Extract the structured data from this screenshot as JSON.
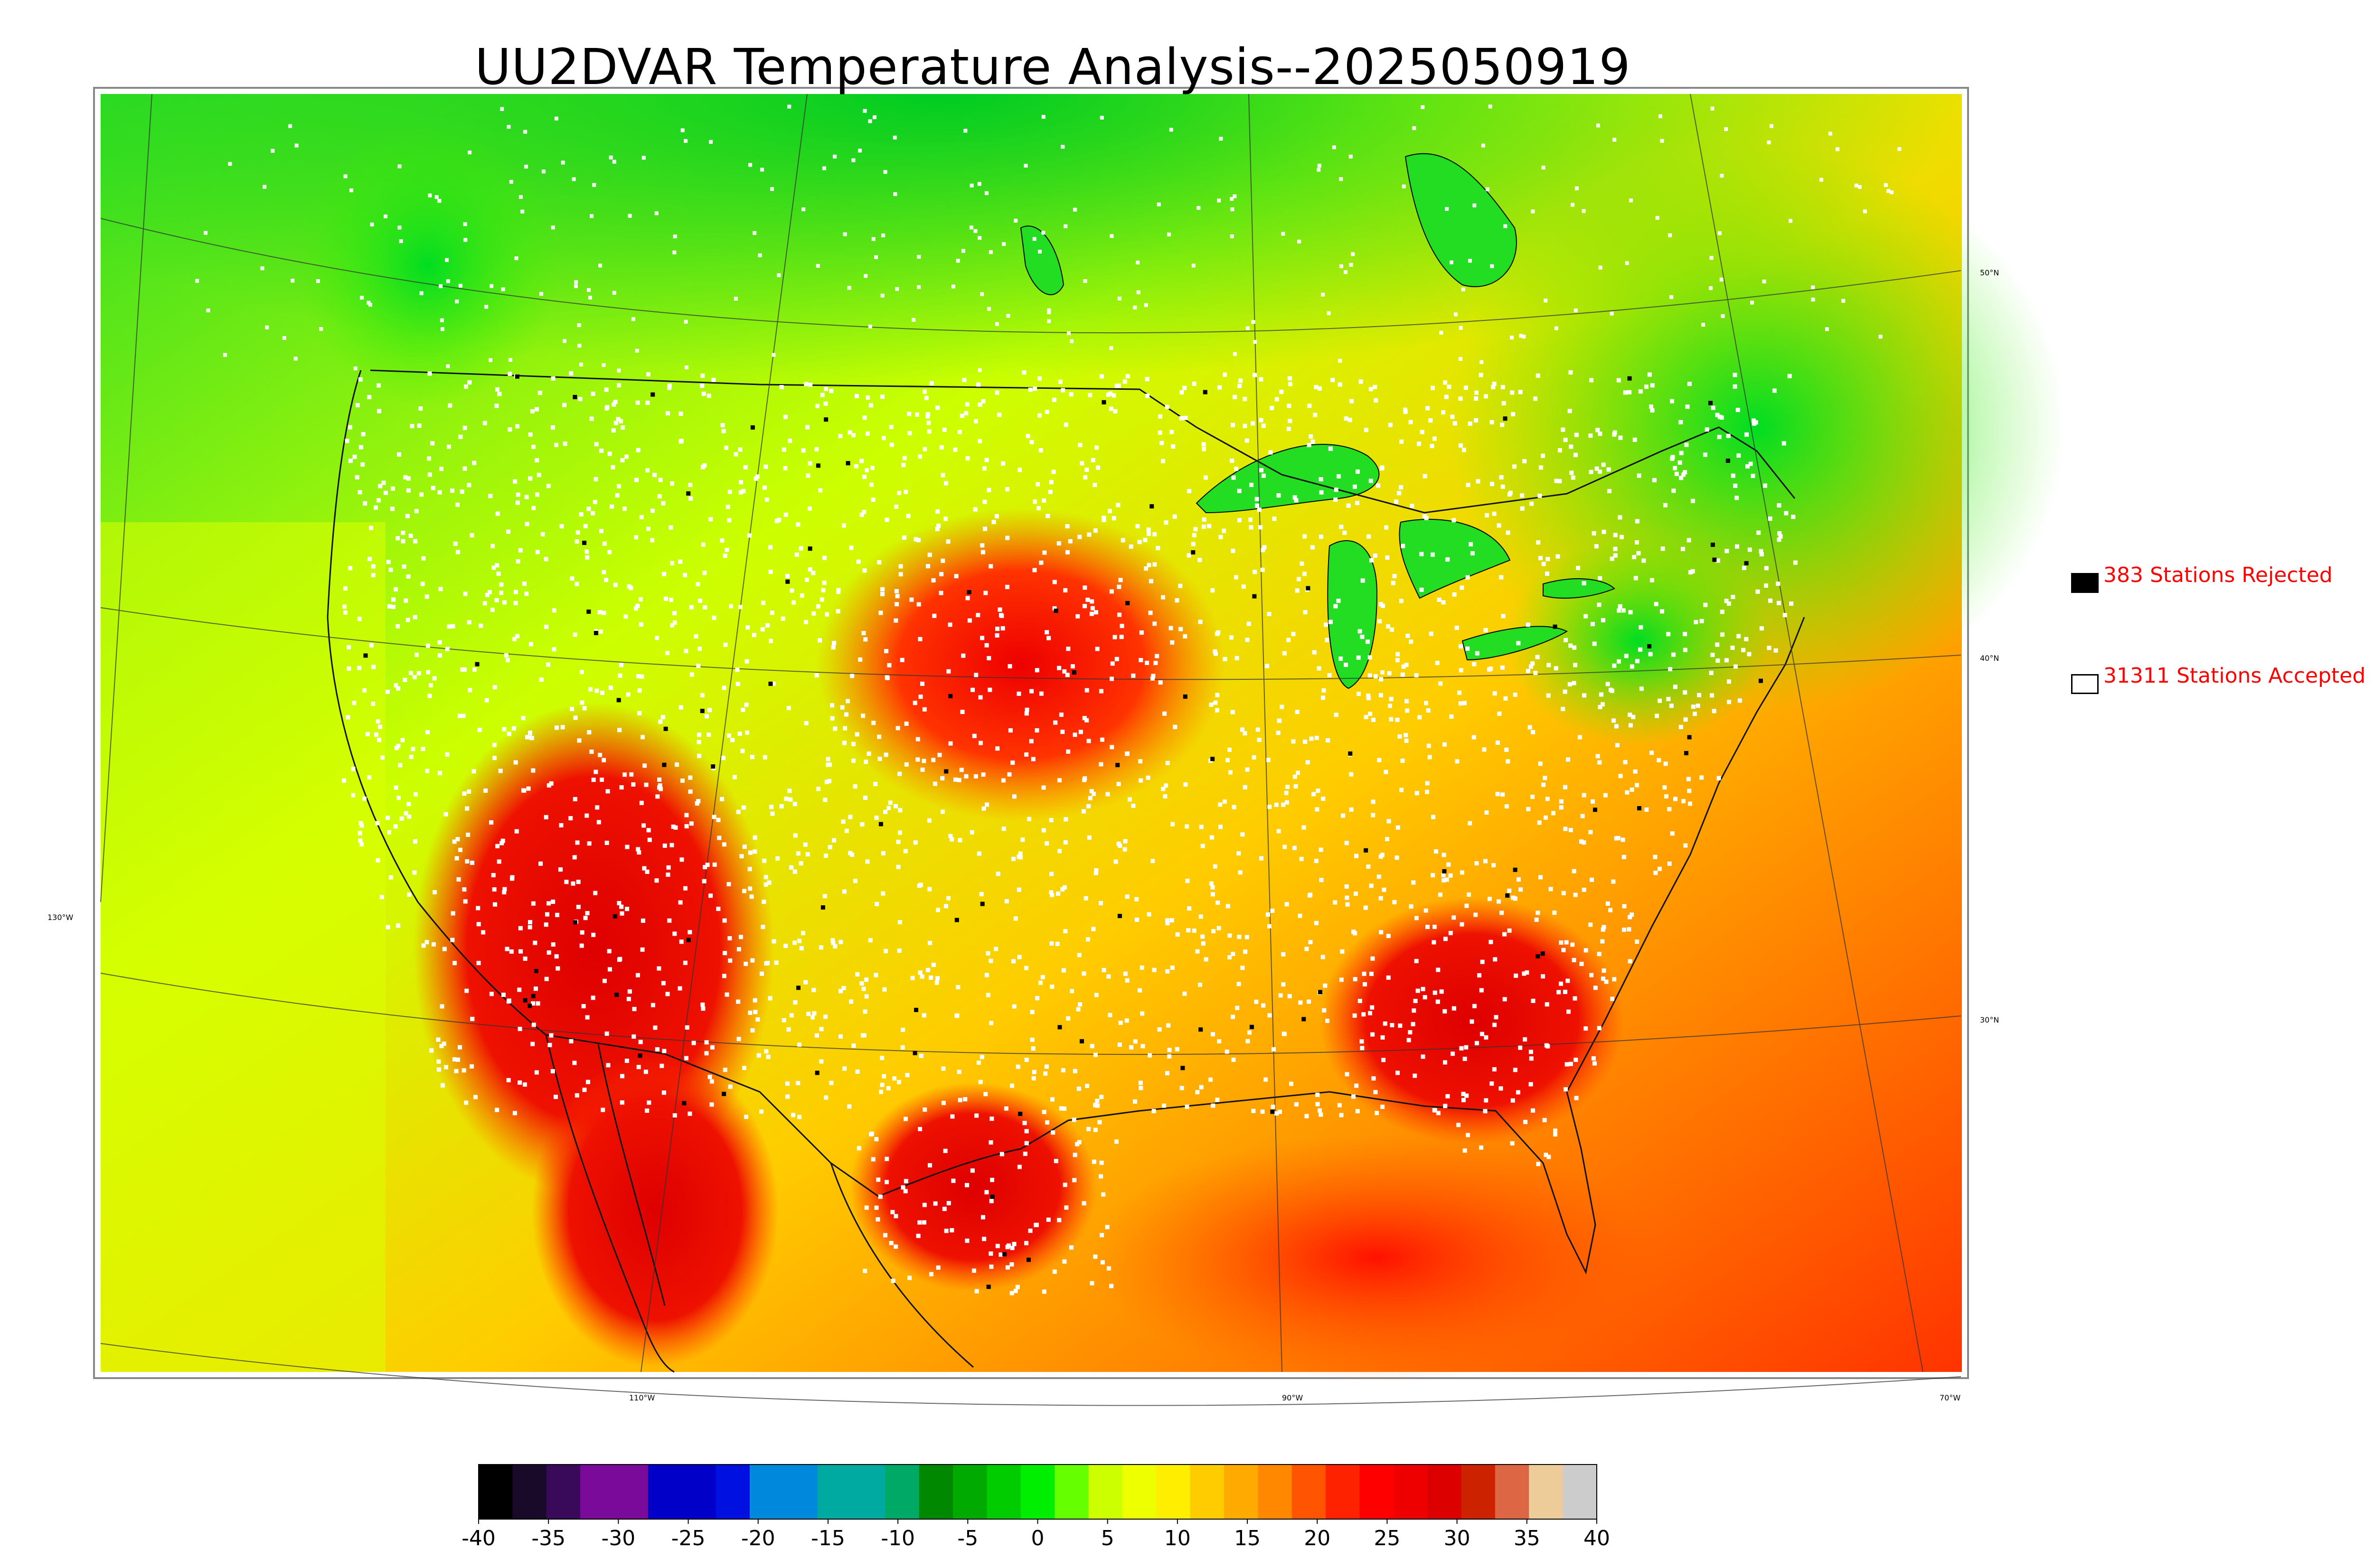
{
  "title": "UU2DVAR Temperature Analysis--2025050919",
  "legend": {
    "rejected": {
      "label": "383 Stations Rejected",
      "swatch_color": "#000000"
    },
    "accepted": {
      "label": "31311 Stations Accepted",
      "swatch_color": "#ffffff"
    },
    "text_color": "#ff0000"
  },
  "graticule": {
    "lat_labels": [
      "50°N",
      "40°N",
      "30°N"
    ],
    "lon_labels": [
      "130°W",
      "110°W",
      "90°W",
      "70°W"
    ]
  },
  "colorbar": {
    "ticks": [
      "-40",
      "-35",
      "-30",
      "-25",
      "-20",
      "-15",
      "-10",
      "-5",
      "0",
      "5",
      "10",
      "15",
      "20",
      "25",
      "30",
      "35",
      "40"
    ],
    "min": -40,
    "max": 40,
    "colors": [
      "#000000",
      "#1a0a2a",
      "#3a0a5a",
      "#7a0a9a",
      "#7a0a9a",
      "#0000c8",
      "#0000c8",
      "#0010e0",
      "#0088dd",
      "#0088dd",
      "#00aaa0",
      "#00aaa0",
      "#00aa66",
      "#008800",
      "#00aa00",
      "#00cc00",
      "#00ee00",
      "#66ff00",
      "#ccff00",
      "#eeff00",
      "#ffee00",
      "#ffcc00",
      "#ffaa00",
      "#ff8800",
      "#ff5500",
      "#ff2200",
      "#ff0000",
      "#ee0000",
      "#dd0000",
      "#cc2200",
      "#dd6644",
      "#eecc99",
      "#cccccc"
    ]
  }
}
